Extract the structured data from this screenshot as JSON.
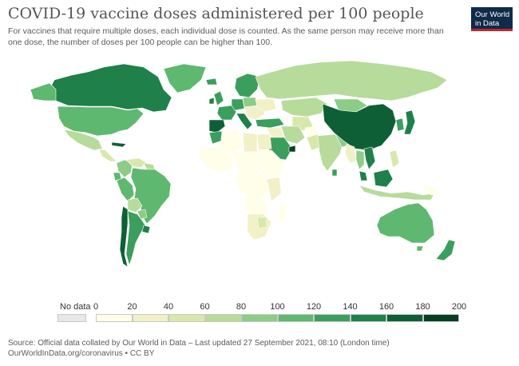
{
  "title": "COVID-19 vaccine doses administered per 100 people",
  "subtitle": "For vaccines that require multiple doses, each individual dose is counted. As the same person may receive more than one dose, the number of doses per 100 people can be higher than 100.",
  "logo": {
    "line1": "Our World",
    "line2": "in Data"
  },
  "legend": {
    "no_data_label": "No data",
    "ticks": [
      "0",
      "20",
      "40",
      "60",
      "80",
      "100",
      "120",
      "140",
      "160",
      "180",
      "200"
    ],
    "bin_colors": [
      "#fffee8",
      "#f2f0c6",
      "#d8e8ad",
      "#b7db9a",
      "#8ccc86",
      "#5eb86f",
      "#3a9f5c",
      "#1f8049",
      "#0e5f36",
      "#073f22"
    ],
    "no_data_color": "#e8e8e8"
  },
  "source": {
    "line1": "Source: Official data collated by Our World in Data – Last updated 27 September 2021, 08:10 (London time)",
    "line2": "OurWorldInData.org/coronavirus • CC BY"
  },
  "colors": {
    "ocean": "#ffffff",
    "border": "#ffffff",
    "title": "#555555",
    "logo_bg": "#0f2a4a",
    "logo_accent": "#c3262f"
  }
}
